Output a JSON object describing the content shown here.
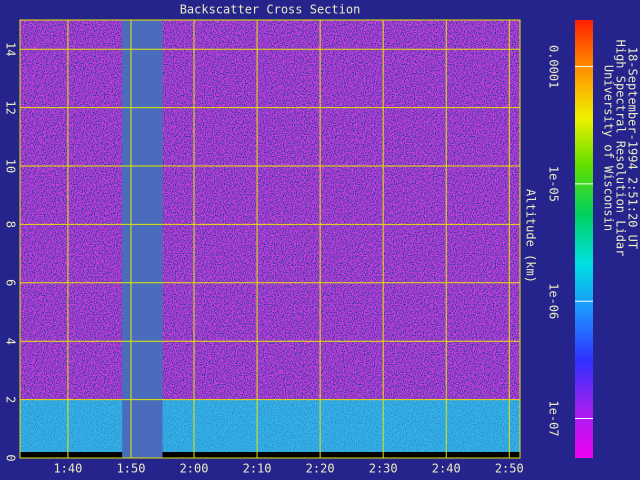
{
  "chart_data": {
    "type": "lidar-cross-section",
    "title": "Backscatter Cross Section",
    "y_label": "Altitude (km)",
    "info_lines": [
      "University of Wisconsin",
      "High Spectral Resolution Lidar",
      "18-September-1994  2:51:20 UT"
    ],
    "xlim": [
      92.4,
      171.7
    ],
    "xticks": [
      {
        "value": 100,
        "label": "1:40"
      },
      {
        "value": 110,
        "label": "1:50"
      },
      {
        "value": 120,
        "label": "2:00"
      },
      {
        "value": 130,
        "label": "2:10"
      },
      {
        "value": 140,
        "label": "2:20"
      },
      {
        "value": 150,
        "label": "2:30"
      },
      {
        "value": 160,
        "label": "2:40"
      },
      {
        "value": 170,
        "label": "2:50"
      }
    ],
    "ylim": [
      0,
      15
    ],
    "yticks": [
      0,
      2,
      4,
      6,
      8,
      10,
      12,
      14
    ],
    "grid": true,
    "grid_color": "#e6e600",
    "background_color": "#d23ce8",
    "aerosol_layer": {
      "top": 2,
      "color": "#38b4ec"
    },
    "data_gap": [
      108.6,
      115.0
    ],
    "gap_color": "#4a6cbc",
    "color_scale": "log",
    "clim": [
      4.6e-08,
      0.00025
    ],
    "cticks": [
      {
        "value": 1e-07,
        "label": "1e-07"
      },
      {
        "value": 1e-06,
        "label": "1e-06"
      },
      {
        "value": 1e-05,
        "label": "1e-05"
      },
      0.0001
    ],
    "colormap": [
      "#f000f0",
      "#a020f0",
      "#3030ff",
      "#1e90ff",
      "#00e0e0",
      "#00d060",
      "#60e000",
      "#f0f000",
      "#ff9000",
      "#ff2000"
    ]
  }
}
